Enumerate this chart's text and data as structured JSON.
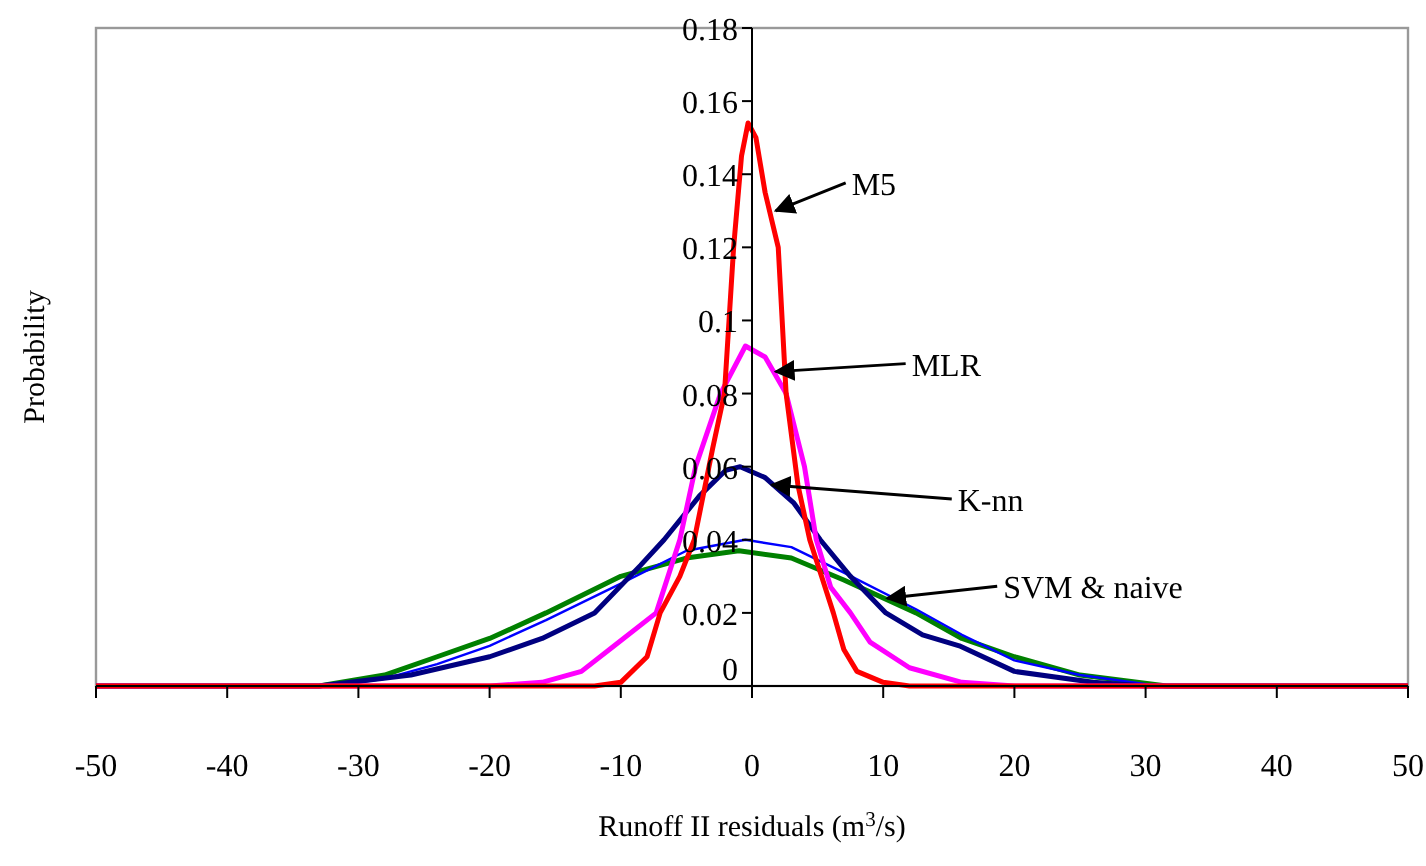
{
  "chart_data": {
    "type": "line",
    "xlabel": "Runoff II residuals (m$^{3}$/s)",
    "ylabel": "Probability",
    "xlim": [
      -50,
      50
    ],
    "xticks": [
      -50,
      -40,
      -30,
      -20,
      -10,
      0,
      10,
      20,
      30,
      40,
      50
    ],
    "ylim": [
      0,
      0.18
    ],
    "yticks": [
      0,
      0.02,
      0.04,
      0.06,
      0.08,
      0.1,
      0.12,
      0.14,
      0.16,
      0.18
    ],
    "grid": false,
    "line_style": "solid",
    "series": [
      {
        "color": "#008000",
        "x": [
          -50,
          -33,
          -28,
          -24,
          -20,
          -15.7,
          -10,
          -5,
          -1,
          3,
          7,
          12.5,
          16,
          20,
          25,
          31.6,
          50
        ],
        "values": [
          0,
          0,
          0.003,
          0.008,
          0.013,
          0.02,
          0.03,
          0.035,
          0.037,
          0.035,
          0.029,
          0.02,
          0.013,
          0.008,
          0.003,
          0,
          0
        ]
      },
      {
        "color": "#0000ff",
        "x": [
          -50,
          -32,
          -28,
          -24,
          -20,
          -15.7,
          -10,
          -5,
          -0.5,
          3,
          7,
          12.5,
          16,
          20,
          25,
          31,
          50
        ],
        "values": [
          0,
          0,
          0.002,
          0.006,
          0.011,
          0.018,
          0.028,
          0.037,
          0.04,
          0.038,
          0.031,
          0.021,
          0.014,
          0.007,
          0.003,
          0,
          0
        ]
      },
      {
        "color": "#000080",
        "x": [
          -50,
          -33,
          -26,
          -20,
          -16,
          -12,
          -8.5,
          -6.7,
          -4,
          -2,
          -0.9,
          1,
          3.2,
          5.2,
          7.5,
          10.2,
          13,
          15.8,
          20,
          26,
          30,
          50
        ],
        "values": [
          0,
          0,
          0.003,
          0.008,
          0.013,
          0.02,
          0.033,
          0.04,
          0.052,
          0.059,
          0.06,
          0.057,
          0.05,
          0.04,
          0.03,
          0.02,
          0.014,
          0.011,
          0.004,
          0.001,
          0,
          0
        ]
      },
      {
        "color": "#ff00ff",
        "x": [
          -50,
          -20,
          -16,
          -13,
          -10.5,
          -7.3,
          -5.5,
          -4.3,
          -2.4,
          -0.5,
          1,
          2.6,
          4,
          4.9,
          6,
          7.5,
          9,
          12,
          16,
          20,
          50
        ],
        "values": [
          0,
          0,
          0.001,
          0.004,
          0.011,
          0.02,
          0.04,
          0.06,
          0.08,
          0.093,
          0.09,
          0.08,
          0.06,
          0.04,
          0.027,
          0.02,
          0.012,
          0.005,
          0.001,
          0,
          0
        ]
      },
      {
        "color": "#ff0000",
        "x": [
          -50,
          -12,
          -10,
          -8,
          -7,
          -5.5,
          -4.4,
          -3,
          -2.1,
          -1.4,
          -0.8,
          -0.3,
          0.3,
          1,
          2,
          2.6,
          3.5,
          4.4,
          5.3,
          6.2,
          7,
          8,
          10,
          12,
          50
        ],
        "values": [
          0,
          0,
          0.001,
          0.008,
          0.02,
          0.03,
          0.04,
          0.065,
          0.08,
          0.12,
          0.145,
          0.154,
          0.15,
          0.135,
          0.12,
          0.08,
          0.055,
          0.04,
          0.03,
          0.02,
          0.01,
          0.004,
          0.001,
          0,
          0
        ]
      }
    ],
    "annotations": [
      {
        "text": "M5",
        "x": 1.5,
        "y": 0.13
      },
      {
        "text": "MLR",
        "x": 1.5,
        "y": 0.086
      },
      {
        "text": "K-nn",
        "x": 1.2,
        "y": 0.055
      },
      {
        "text": "SVM & naive",
        "x": 10,
        "y": 0.024
      }
    ]
  }
}
